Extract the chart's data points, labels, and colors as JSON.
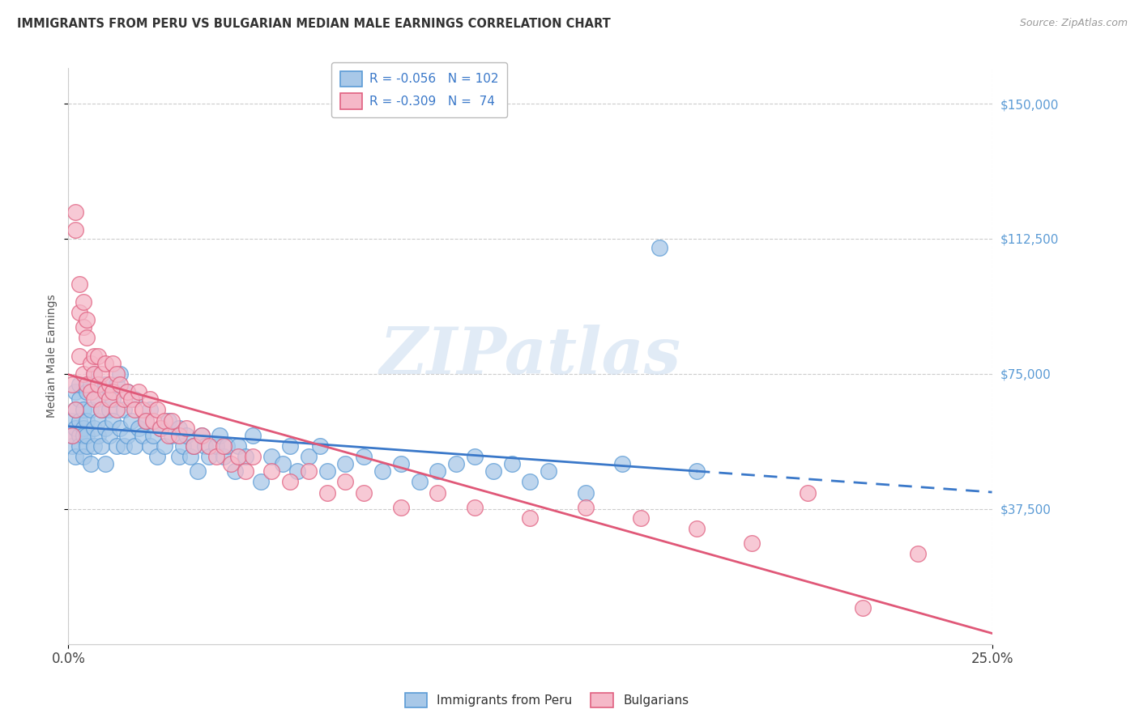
{
  "title": "IMMIGRANTS FROM PERU VS BULGARIAN MEDIAN MALE EARNINGS CORRELATION CHART",
  "source": "Source: ZipAtlas.com",
  "ylabel": "Median Male Earnings",
  "xlim": [
    0.0,
    0.25
  ],
  "ylim": [
    0,
    160000
  ],
  "watermark_text": "ZIPatlas",
  "peru_color": "#a8c8e8",
  "peru_edge_color": "#5b9bd5",
  "bulgarian_color": "#f5b8c8",
  "bulgarian_edge_color": "#e06080",
  "peru_line_color": "#3a78c9",
  "bulgarian_line_color": "#e05878",
  "right_label_color": "#5b9bd5",
  "legend_label_color": "#3a78c9",
  "legend1_r": "-0.056",
  "legend1_n": "102",
  "legend2_r": "-0.309",
  "legend2_n": " 74",
  "ytick_vals": [
    37500,
    75000,
    112500,
    150000
  ],
  "ytick_labels": [
    "$37,500",
    "$75,000",
    "$112,500",
    "$150,000"
  ],
  "peru_x": [
    0.001,
    0.001,
    0.001,
    0.002,
    0.002,
    0.002,
    0.002,
    0.003,
    0.003,
    0.003,
    0.003,
    0.003,
    0.004,
    0.004,
    0.004,
    0.004,
    0.005,
    0.005,
    0.005,
    0.005,
    0.006,
    0.006,
    0.006,
    0.007,
    0.007,
    0.007,
    0.008,
    0.008,
    0.008,
    0.009,
    0.009,
    0.01,
    0.01,
    0.01,
    0.011,
    0.011,
    0.012,
    0.012,
    0.013,
    0.013,
    0.014,
    0.014,
    0.015,
    0.015,
    0.016,
    0.016,
    0.017,
    0.018,
    0.018,
    0.019,
    0.02,
    0.021,
    0.022,
    0.022,
    0.023,
    0.024,
    0.025,
    0.026,
    0.027,
    0.028,
    0.03,
    0.03,
    0.031,
    0.032,
    0.033,
    0.034,
    0.035,
    0.036,
    0.037,
    0.038,
    0.04,
    0.041,
    0.042,
    0.043,
    0.045,
    0.046,
    0.048,
    0.05,
    0.052,
    0.055,
    0.058,
    0.06,
    0.062,
    0.065,
    0.068,
    0.07,
    0.075,
    0.08,
    0.085,
    0.09,
    0.095,
    0.1,
    0.105,
    0.11,
    0.115,
    0.12,
    0.125,
    0.13,
    0.14,
    0.15,
    0.16,
    0.17
  ],
  "peru_y": [
    62000,
    55000,
    58000,
    60000,
    65000,
    52000,
    70000,
    58000,
    62000,
    68000,
    55000,
    72000,
    60000,
    52000,
    65000,
    58000,
    70000,
    55000,
    62000,
    58000,
    65000,
    50000,
    72000,
    60000,
    55000,
    75000,
    62000,
    58000,
    68000,
    55000,
    65000,
    60000,
    72000,
    50000,
    65000,
    58000,
    62000,
    68000,
    55000,
    72000,
    60000,
    75000,
    55000,
    65000,
    70000,
    58000,
    62000,
    55000,
    68000,
    60000,
    58000,
    62000,
    55000,
    65000,
    58000,
    52000,
    60000,
    55000,
    62000,
    58000,
    52000,
    60000,
    55000,
    58000,
    52000,
    55000,
    48000,
    58000,
    55000,
    52000,
    55000,
    58000,
    52000,
    55000,
    48000,
    55000,
    52000,
    58000,
    45000,
    52000,
    50000,
    55000,
    48000,
    52000,
    55000,
    48000,
    50000,
    52000,
    48000,
    50000,
    45000,
    48000,
    50000,
    52000,
    48000,
    50000,
    45000,
    48000,
    42000,
    50000,
    110000,
    48000
  ],
  "bulgarian_x": [
    0.001,
    0.001,
    0.002,
    0.002,
    0.002,
    0.003,
    0.003,
    0.003,
    0.004,
    0.004,
    0.004,
    0.005,
    0.005,
    0.005,
    0.006,
    0.006,
    0.007,
    0.007,
    0.007,
    0.008,
    0.008,
    0.009,
    0.009,
    0.01,
    0.01,
    0.011,
    0.011,
    0.012,
    0.012,
    0.013,
    0.013,
    0.014,
    0.015,
    0.016,
    0.017,
    0.018,
    0.019,
    0.02,
    0.021,
    0.022,
    0.023,
    0.024,
    0.025,
    0.026,
    0.027,
    0.028,
    0.03,
    0.032,
    0.034,
    0.036,
    0.038,
    0.04,
    0.042,
    0.044,
    0.046,
    0.048,
    0.05,
    0.055,
    0.06,
    0.065,
    0.07,
    0.075,
    0.08,
    0.09,
    0.1,
    0.11,
    0.125,
    0.14,
    0.155,
    0.17,
    0.185,
    0.2,
    0.215,
    0.23
  ],
  "bulgarian_y": [
    72000,
    58000,
    120000,
    115000,
    65000,
    100000,
    92000,
    80000,
    88000,
    75000,
    95000,
    85000,
    72000,
    90000,
    78000,
    70000,
    80000,
    68000,
    75000,
    72000,
    80000,
    75000,
    65000,
    70000,
    78000,
    68000,
    72000,
    78000,
    70000,
    75000,
    65000,
    72000,
    68000,
    70000,
    68000,
    65000,
    70000,
    65000,
    62000,
    68000,
    62000,
    65000,
    60000,
    62000,
    58000,
    62000,
    58000,
    60000,
    55000,
    58000,
    55000,
    52000,
    55000,
    50000,
    52000,
    48000,
    52000,
    48000,
    45000,
    48000,
    42000,
    45000,
    42000,
    38000,
    42000,
    38000,
    35000,
    38000,
    35000,
    32000,
    28000,
    42000,
    10000,
    25000
  ]
}
